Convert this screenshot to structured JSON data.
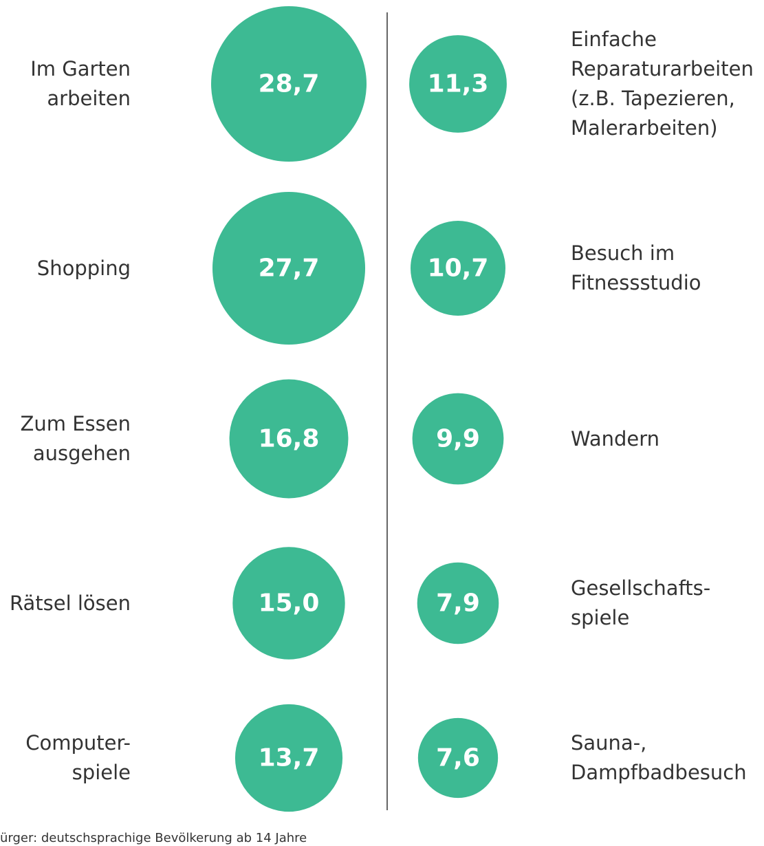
{
  "chart_data": {
    "type": "bubble",
    "categories": [
      "Im Garten\narbeiten",
      "Shopping",
      "Zum Essen\nausgehen",
      "Rätsel lösen",
      "Computer-\nspiele",
      "Einfache\nReparaturarbeiten\n(z.B. Tapezieren,\nMalerarbeiten)",
      "Besuch im\nFitnessstudio",
      "Wandern",
      "Gesellschafts-\nspiele",
      "Sauna-,\nDampfbadbesuch"
    ],
    "values": [
      28.7,
      27.7,
      16.8,
      15.0,
      13.7,
      11.3,
      10.7,
      9.9,
      7.9,
      7.6
    ],
    "value_labels": [
      "28,7",
      "27,7",
      "16,8",
      "15,0",
      "13,7",
      "11,3",
      "10,7",
      "9,9",
      "7,9",
      "7,6"
    ],
    "color": "#3dba93",
    "footnote": "ürger: deutschsprachige Bevölkerung ab 14 Jahre"
  }
}
